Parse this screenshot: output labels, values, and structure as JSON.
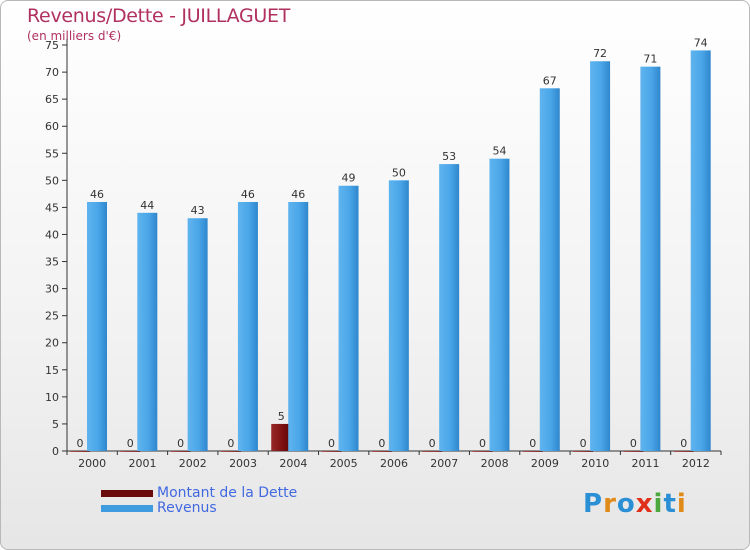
{
  "chart_data": {
    "type": "bar",
    "title": "Revenus/Dette - JUILLAGUET",
    "subtitle": "(en milliers d'€)",
    "categories": [
      "2000",
      "2001",
      "2002",
      "2003",
      "2004",
      "2005",
      "2006",
      "2007",
      "2008",
      "2009",
      "2010",
      "2011",
      "2012"
    ],
    "series": [
      {
        "name": "Montant de la Dette",
        "color": "#7a0e0e",
        "values": [
          0,
          0,
          0,
          0,
          5,
          0,
          0,
          0,
          0,
          0,
          0,
          0,
          0
        ]
      },
      {
        "name": "Revenus",
        "color": "#3f9be0",
        "values": [
          46,
          44,
          43,
          46,
          46,
          49,
          50,
          53,
          54,
          67,
          72,
          71,
          74
        ]
      }
    ],
    "yticks": [
      0,
      5,
      10,
      15,
      20,
      25,
      30,
      35,
      40,
      45,
      50,
      55,
      60,
      65,
      70,
      75
    ],
    "ylim": [
      0,
      75
    ],
    "grid": false,
    "legend": "bottom-left"
  },
  "logo": {
    "letters": [
      "P",
      "r",
      "o",
      "x",
      "i",
      "t",
      "i"
    ],
    "colors": [
      "#2b8fd6",
      "#e08a1a",
      "#2b8fd6",
      "#e0301a",
      "#4aa83c",
      "#2b8fd6",
      "#e08a1a"
    ]
  }
}
